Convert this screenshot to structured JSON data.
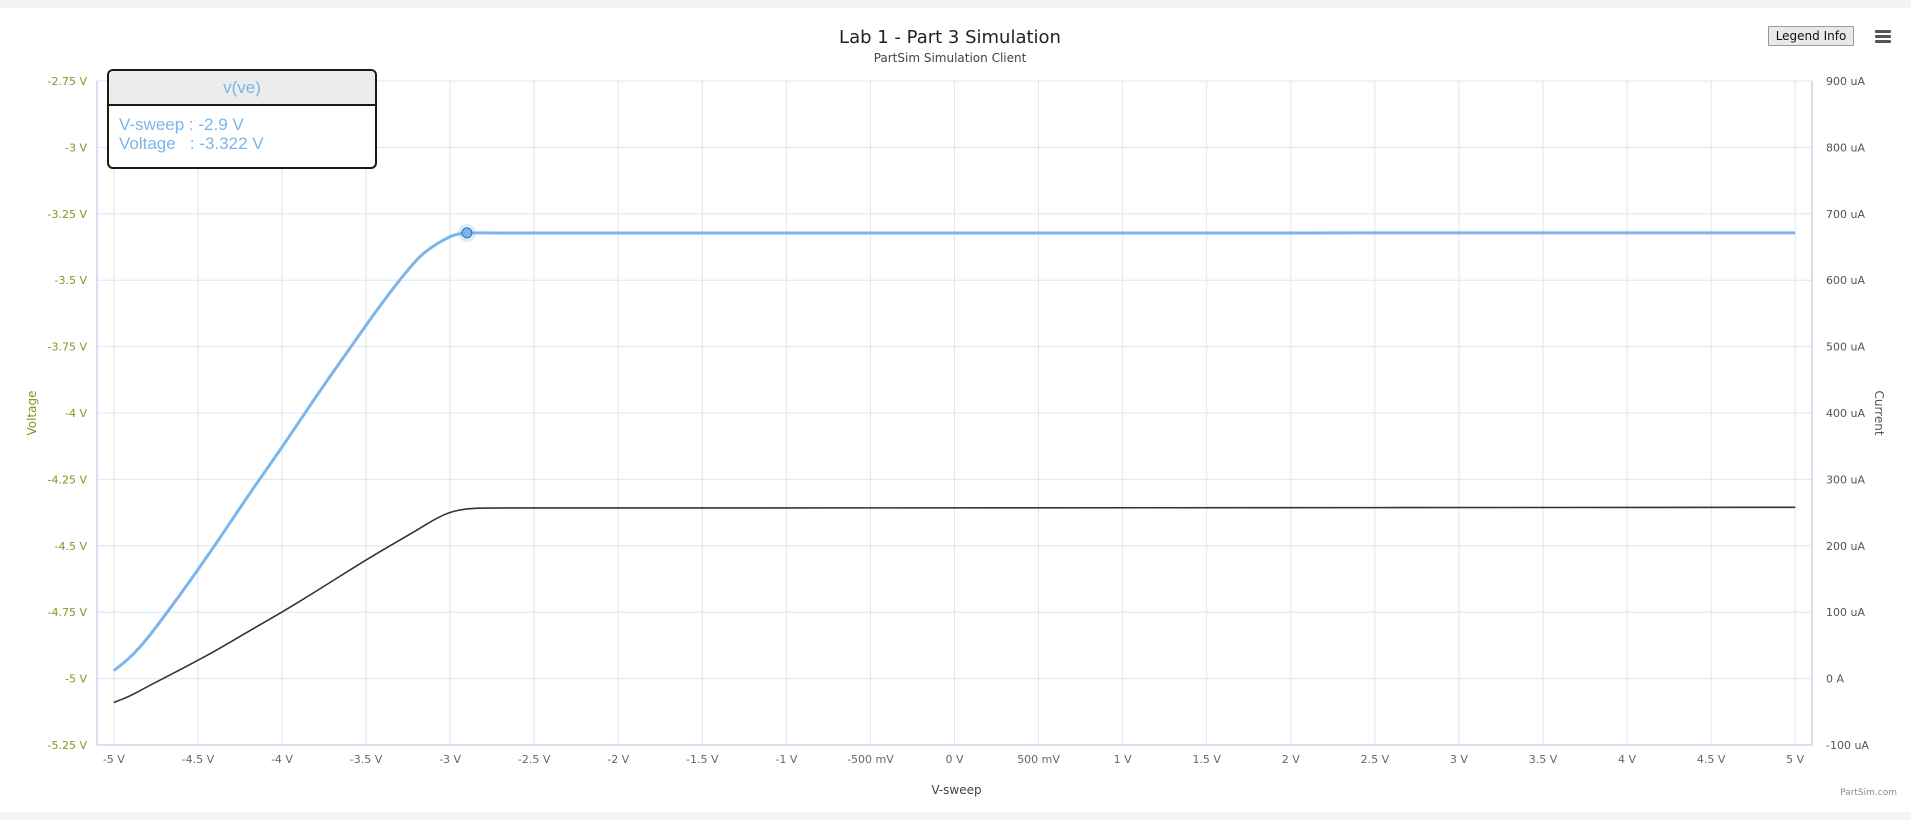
{
  "header": {
    "title": "Lab 1 - Part 3 Simulation",
    "subtitle": "PartSim Simulation Client",
    "legend_button_label": "Legend Info",
    "menu_icon": "hamburger-menu-icon",
    "credits": "PartSim.com"
  },
  "tooltip": {
    "series_name": "v(ve)",
    "x_line": "V-sweep : -2.9 V",
    "y_line": "Voltage   : -3.322 V"
  },
  "colors": {
    "voltage_series": "#7cb5ec",
    "current_series": "#333333",
    "left_axis_text": "#7a9a1f",
    "axis_text": "#666666",
    "grid": "#dfe6ee",
    "axis_line": "#c6d6ea"
  },
  "chart_data": {
    "type": "line",
    "title": "Lab 1 - Part 3 Simulation",
    "subtitle": "PartSim Simulation Client",
    "xlabel": "V-sweep",
    "xlim": [
      -5.1,
      5.1
    ],
    "x_ticks": [
      -5,
      -4.5,
      -4,
      -3.5,
      -3,
      -2.5,
      -2,
      -1.5,
      -1,
      -0.5,
      0,
      0.5,
      1,
      1.5,
      2,
      2.5,
      3,
      3.5,
      4,
      4.5,
      5
    ],
    "x_tick_labels": [
      "-5 V",
      "-4.5 V",
      "-4 V",
      "-3.5 V",
      "-3 V",
      "-2.5 V",
      "-2 V",
      "-1.5 V",
      "-1 V",
      "-500 mV",
      "0 V",
      "500 mV",
      "1 V",
      "1.5 V",
      "2 V",
      "2.5 V",
      "3 V",
      "3.5 V",
      "4 V",
      "4.5 V",
      "5 V"
    ],
    "left_axis": {
      "label": "Voltage",
      "ylim": [
        -5.25,
        -2.75
      ],
      "ticks": [
        -2.75,
        -3,
        -3.25,
        -3.5,
        -3.75,
        -4,
        -4.25,
        -4.5,
        -4.75,
        -5,
        -5.25
      ],
      "tick_labels": [
        "-2.75 V",
        "-3 V",
        "-3.25 V",
        "-3.5 V",
        "-3.75 V",
        "-4 V",
        "-4.25 V",
        "-4.5 V",
        "-4.75 V",
        "-5 V",
        "-5.25 V"
      ]
    },
    "right_axis": {
      "label": "Current",
      "ylim": [
        -100,
        900
      ],
      "ticks": [
        900,
        800,
        700,
        600,
        500,
        400,
        300,
        200,
        100,
        0,
        -100
      ],
      "tick_labels": [
        "900 uA",
        "800 uA",
        "700 uA",
        "600 uA",
        "500 uA",
        "400 uA",
        "300 uA",
        "200 uA",
        "100 uA",
        "0 A",
        "-100 uA"
      ]
    },
    "grid": true,
    "series": [
      {
        "name": "v(ve)",
        "axis": "left",
        "color": "#7cb5ec",
        "x": [
          -5.0,
          -4.9,
          -4.8,
          -4.6,
          -4.4,
          -4.2,
          -4.0,
          -3.8,
          -3.6,
          -3.4,
          -3.2,
          -3.1,
          -3.0,
          -2.95,
          -2.9,
          -2.8,
          -2.5,
          0,
          5
        ],
        "values": [
          -4.97,
          -4.92,
          -4.85,
          -4.68,
          -4.5,
          -4.31,
          -4.13,
          -3.94,
          -3.76,
          -3.58,
          -3.42,
          -3.37,
          -3.335,
          -3.325,
          -3.322,
          -3.322,
          -3.323,
          -3.322,
          -3.322
        ]
      },
      {
        "name": "current",
        "axis": "right",
        "color": "#333333",
        "x": [
          -5.0,
          -4.9,
          -4.8,
          -4.6,
          -4.4,
          -4.2,
          -4.0,
          -3.8,
          -3.6,
          -3.4,
          -3.2,
          -3.1,
          -3.0,
          -2.9,
          -2.8,
          -2.5,
          0,
          5
        ],
        "values": [
          -36,
          -26,
          -12,
          14,
          41,
          71,
          100,
          131,
          163,
          194,
          223,
          239,
          251,
          256,
          257,
          257,
          257,
          258
        ]
      }
    ],
    "highlight_point": {
      "series": "v(ve)",
      "x": -2.9,
      "y": -3.322
    }
  }
}
